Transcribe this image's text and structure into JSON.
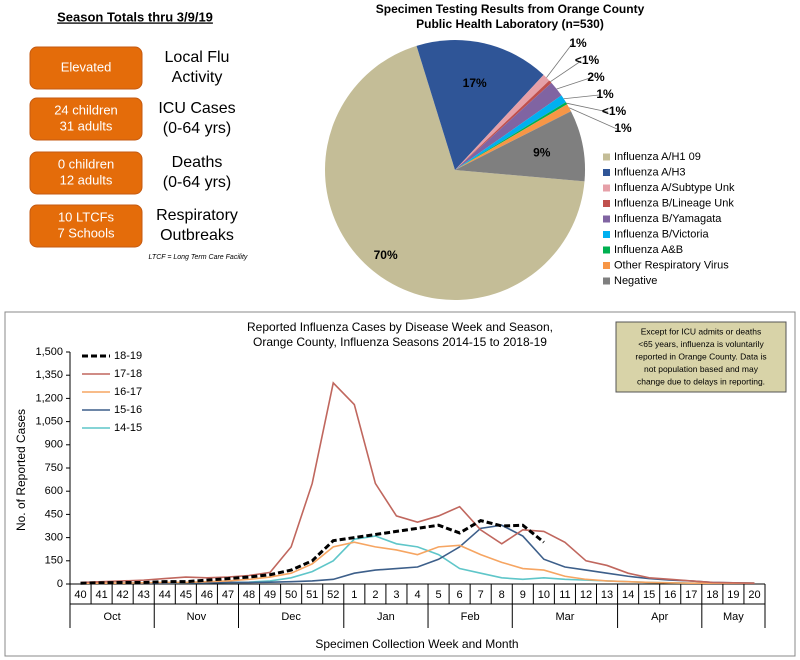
{
  "season_totals": {
    "heading": "Season Totals thru 3/9/19",
    "items": [
      {
        "value": [
          "Elevated"
        ],
        "label": [
          "Local Flu",
          "Activity"
        ]
      },
      {
        "value": [
          "24 children",
          "31 adults"
        ],
        "label": [
          "ICU Cases",
          "(0-64 yrs)"
        ]
      },
      {
        "value": [
          "0 children",
          "12 adults"
        ],
        "label": [
          "Deaths",
          "(0-64 yrs)"
        ]
      },
      {
        "value": [
          "10 LTCFs",
          "7 Schools"
        ],
        "label": [
          "Respiratory",
          "Outbreaks"
        ]
      }
    ],
    "footnote": "LTCF = Long Term Care Facility"
  },
  "chart_data": [
    {
      "type": "pie",
      "title": [
        "Specimen Testing Results from Orange County",
        "Public Health Laboratory (n=530)"
      ],
      "categories": [
        "Influenza A/H1 09",
        "Influenza A/H3",
        "Influenza A/Subtype Unk",
        "Influenza B/Lineage Unk",
        "Influenza B/Yamagata",
        "Influenza B/Victoria",
        "Influenza A&B",
        "Other Respiratory Virus",
        "Negative"
      ],
      "values": [
        70,
        17,
        1,
        0.4,
        2,
        1,
        0.3,
        1,
        9
      ],
      "value_labels": [
        "70%",
        "17%",
        "1%",
        "<1%",
        "2%",
        "1%",
        "<1%",
        "1%",
        "9%"
      ],
      "colors": [
        "#c4bd97",
        "#2f5597",
        "#e6a0a8",
        "#c0504d",
        "#8064a2",
        "#00b0f0",
        "#00b050",
        "#f79646",
        "#7f7f7f"
      ],
      "legend": "right"
    },
    {
      "type": "line",
      "title": [
        "Reported Influenza Cases by Disease Week and Season,",
        "Orange County, Influenza Seasons 2014-15 to 2018-19"
      ],
      "annotation": [
        "Except for ICU admits or deaths",
        "<65 years, influenza is voluntarily",
        "reported in Orange County.  Data is",
        "not population based and may",
        "change due to delays in reporting."
      ],
      "x_label": "Specimen Collection Week and Month",
      "y_label": "No. of Reported Cases",
      "categories": [
        "40",
        "41",
        "42",
        "43",
        "44",
        "45",
        "46",
        "47",
        "48",
        "49",
        "50",
        "51",
        "52",
        "1",
        "2",
        "3",
        "4",
        "5",
        "6",
        "7",
        "8",
        "9",
        "10",
        "11",
        "12",
        "13",
        "14",
        "15",
        "16",
        "17",
        "18",
        "19",
        "20"
      ],
      "months": [
        "Oct",
        "Nov",
        "Dec",
        "Jan",
        "Feb",
        "Mar",
        "Apr",
        "May"
      ],
      "ylim": [
        0,
        1500
      ],
      "yticks": [
        0,
        150,
        300,
        450,
        600,
        750,
        900,
        {
          "value": 1050,
          "label": "1,050"
        },
        {
          "value": 1200,
          "label": "1,200"
        },
        {
          "value": 1350,
          "label": "1,350"
        },
        {
          "value": 1500,
          "label": "1,500"
        }
      ],
      "legend": "top-left",
      "series": [
        {
          "name": "18-19",
          "color": "#000000",
          "dashed": true,
          "values": [
            5,
            8,
            10,
            10,
            15,
            15,
            25,
            35,
            45,
            60,
            90,
            150,
            280,
            300,
            320,
            340,
            360,
            380,
            330,
            410,
            375,
            380,
            270,
            null,
            null,
            null,
            null,
            null,
            null,
            null,
            null,
            null,
            null
          ]
        },
        {
          "name": "17-18",
          "color": "#c0675e",
          "values": [
            10,
            15,
            20,
            25,
            35,
            45,
            40,
            45,
            55,
            75,
            240,
            650,
            1300,
            1160,
            650,
            440,
            400,
            440,
            500,
            350,
            260,
            350,
            340,
            270,
            150,
            120,
            70,
            40,
            30,
            20,
            10,
            8,
            5
          ]
        },
        {
          "name": "16-17",
          "color": "#f6a562",
          "values": [
            5,
            5,
            5,
            8,
            10,
            10,
            15,
            20,
            30,
            45,
            70,
            130,
            240,
            270,
            240,
            220,
            190,
            240,
            250,
            190,
            140,
            100,
            90,
            50,
            30,
            20,
            15,
            10,
            8,
            5,
            5,
            5,
            5
          ]
        },
        {
          "name": "15-16",
          "color": "#3d5f8a",
          "values": [
            5,
            5,
            5,
            5,
            5,
            8,
            8,
            10,
            10,
            12,
            15,
            20,
            30,
            70,
            90,
            100,
            110,
            160,
            240,
            360,
            380,
            310,
            160,
            110,
            90,
            70,
            50,
            35,
            25,
            20,
            10,
            8,
            5
          ]
        },
        {
          "name": "14-15",
          "color": "#5fc6c9",
          "values": [
            5,
            5,
            5,
            5,
            5,
            8,
            8,
            10,
            12,
            20,
            40,
            80,
            150,
            290,
            310,
            260,
            240,
            190,
            100,
            70,
            40,
            30,
            40,
            30,
            25,
            20,
            15,
            10,
            8,
            5,
            5,
            5,
            5
          ]
        }
      ]
    }
  ]
}
